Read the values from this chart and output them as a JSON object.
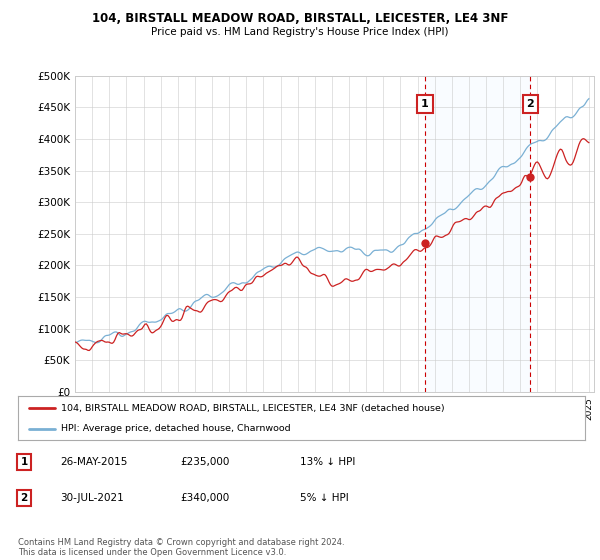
{
  "title1": "104, BIRSTALL MEADOW ROAD, BIRSTALL, LEICESTER, LE4 3NF",
  "title2": "Price paid vs. HM Land Registry's House Price Index (HPI)",
  "ytick_vals": [
    0,
    50000,
    100000,
    150000,
    200000,
    250000,
    300000,
    350000,
    400000,
    450000,
    500000
  ],
  "x_start_year": 1995,
  "x_end_year": 2025,
  "hpi_color": "#7ab0d4",
  "price_color": "#cc2222",
  "point1_year": 2015.42,
  "point1_val": 235000,
  "point1_label": "1",
  "point2_year": 2021.58,
  "point2_val": 340000,
  "point2_label": "2",
  "legend_label_price": "104, BIRSTALL MEADOW ROAD, BIRSTALL, LEICESTER, LE4 3NF (detached house)",
  "legend_label_hpi": "HPI: Average price, detached house, Charnwood",
  "table_row1": [
    "1",
    "26-MAY-2015",
    "£235,000",
    "13% ↓ HPI"
  ],
  "table_row2": [
    "2",
    "30-JUL-2021",
    "£340,000",
    "5% ↓ HPI"
  ],
  "footer": "Contains HM Land Registry data © Crown copyright and database right 2024.\nThis data is licensed under the Open Government Licence v3.0.",
  "background_color": "#ffffff",
  "grid_color": "#cccccc",
  "shade_color": "#ddeeff"
}
